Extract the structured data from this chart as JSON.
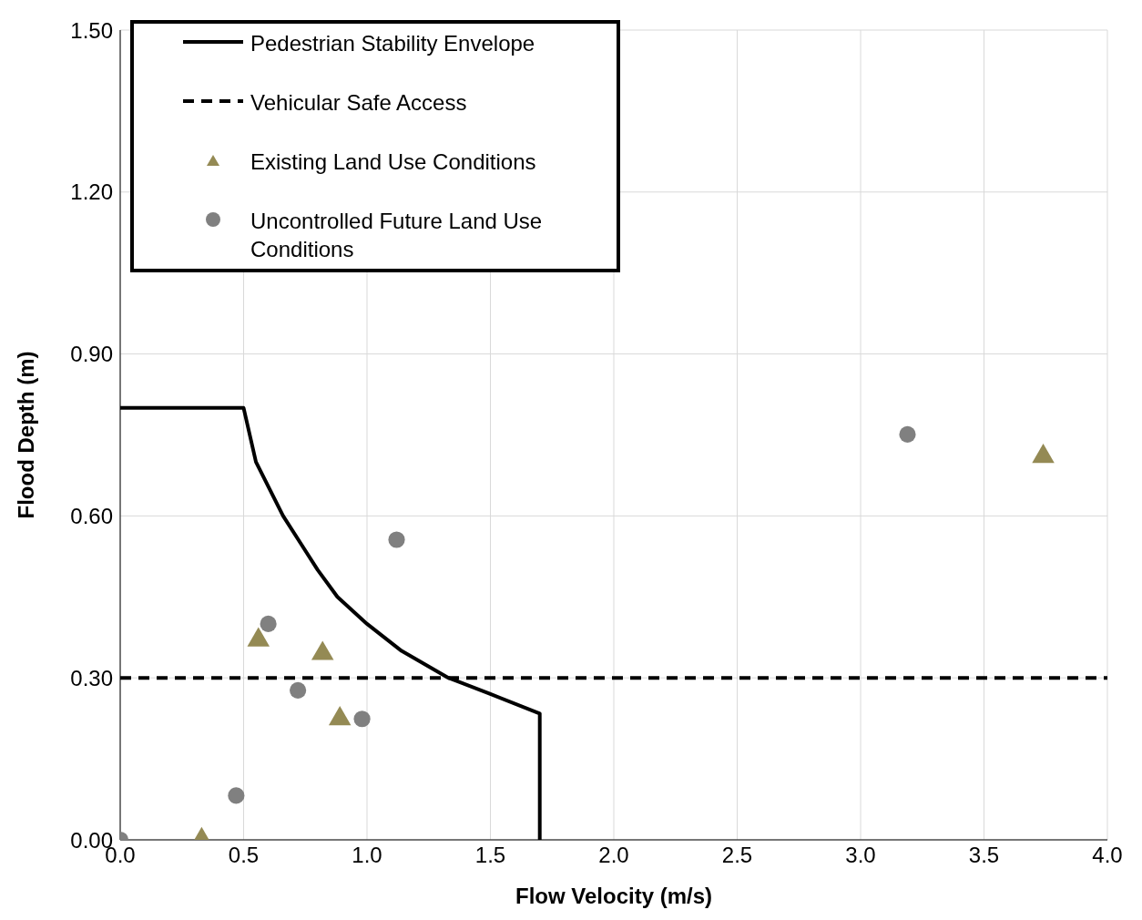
{
  "chart_data": {
    "type": "scatter",
    "xlabel": "Flow Velocity (m/s)",
    "ylabel": "Flood Depth (m)",
    "xlim": [
      0,
      4
    ],
    "xticks": [
      {
        "value": 0,
        "label": "0.0"
      },
      {
        "value": 0.5,
        "label": "0.5"
      },
      {
        "value": 1,
        "label": "1.0"
      },
      {
        "value": 1.5,
        "label": "1.5"
      },
      {
        "value": 2,
        "label": "2.0"
      },
      {
        "value": 2.5,
        "label": "2.5"
      },
      {
        "value": 3,
        "label": "3.0"
      },
      {
        "value": 3.5,
        "label": "3.5"
      },
      {
        "value": 4,
        "label": "4.0"
      }
    ],
    "ylim": [
      0,
      1.5
    ],
    "yticks": [
      {
        "value": 0,
        "label": "0.00"
      },
      {
        "value": 0.3,
        "label": "0.30"
      },
      {
        "value": 0.6,
        "label": "0.60"
      },
      {
        "value": 0.9,
        "label": "0.90"
      },
      {
        "value": 1.2,
        "label": "1.20"
      },
      {
        "value": 1.5,
        "label": "1.50"
      }
    ],
    "grid": true,
    "legend": "top left",
    "series": [
      {
        "name": "Pedestrian Stability Envelope",
        "type": "line",
        "color": "#000000",
        "line_style": "solid",
        "marker": "none",
        "x": [
          0,
          0.5,
          0.55,
          0.66,
          0.73,
          0.8,
          0.88,
          1.0,
          1.14,
          1.33,
          1.5,
          1.7,
          1.7
        ],
        "values": [
          0.8,
          0.8,
          0.7,
          0.6,
          0.55,
          0.5,
          0.45,
          0.4,
          0.35,
          0.3,
          0.27,
          0.234,
          0
        ]
      },
      {
        "name": "Vehicular Safe Access",
        "type": "line",
        "color": "#000000",
        "line_style": "dashed",
        "marker": "none",
        "x": [
          0,
          4
        ],
        "values": [
          0.3,
          0.3
        ]
      },
      {
        "name": "Existing Land Use Conditions",
        "color": "#948a54",
        "marker": "triangle",
        "x": [
          0.33,
          0.56,
          0.82,
          0.89,
          3.74
        ],
        "values": [
          0,
          0.37,
          0.345,
          0.224,
          0.71
        ]
      },
      {
        "name": "Uncontrolled Future Land Use Conditions",
        "color": "#808080",
        "marker": "circle",
        "x": [
          0,
          0.47,
          0.6,
          0.72,
          0.98,
          1.12,
          3.19
        ],
        "values": [
          0,
          0.082,
          0.4,
          0.277,
          0.224,
          0.556,
          0.751
        ]
      }
    ]
  }
}
